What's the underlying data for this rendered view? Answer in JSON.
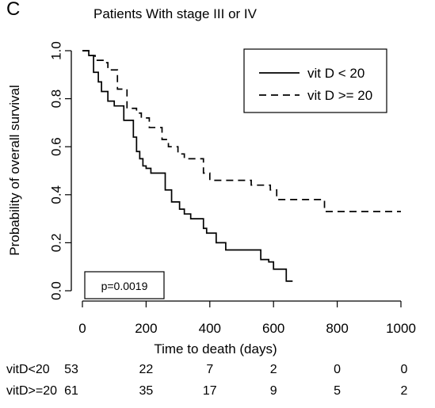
{
  "panel_label": "C",
  "chart_data": {
    "type": "line",
    "title": "Patients With stage III or IV",
    "xlabel": "Time to death (days)",
    "ylabel": "Probability of overall survival",
    "xlim": [
      0,
      1000
    ],
    "ylim": [
      0,
      1
    ],
    "xticks": [
      "0",
      "200",
      "400",
      "600",
      "800",
      "1000"
    ],
    "yticks": [
      "0.0",
      "0.2",
      "0.4",
      "0.6",
      "0.8",
      "1.0"
    ],
    "legend_position": "top-right",
    "annotation": "p=0.0019",
    "series": [
      {
        "name": "vit D < 20",
        "style": "solid",
        "x": [
          0,
          20,
          35,
          50,
          60,
          80,
          100,
          130,
          160,
          170,
          180,
          190,
          200,
          215,
          250,
          260,
          280,
          305,
          320,
          340,
          380,
          390,
          420,
          450,
          560,
          585,
          600,
          640,
          660
        ],
        "y": [
          1.0,
          0.98,
          0.91,
          0.87,
          0.83,
          0.79,
          0.77,
          0.71,
          0.64,
          0.58,
          0.55,
          0.52,
          0.51,
          0.49,
          0.49,
          0.42,
          0.37,
          0.34,
          0.32,
          0.3,
          0.26,
          0.24,
          0.2,
          0.17,
          0.13,
          0.12,
          0.09,
          0.04,
          0.04
        ]
      },
      {
        "name": "vit D >= 20",
        "style": "dashed",
        "x": [
          0,
          20,
          40,
          70,
          80,
          110,
          140,
          170,
          185,
          210,
          250,
          270,
          300,
          320,
          380,
          400,
          450,
          530,
          590,
          610,
          700,
          760,
          1000
        ],
        "y": [
          1.0,
          0.98,
          0.96,
          0.95,
          0.92,
          0.84,
          0.76,
          0.74,
          0.72,
          0.68,
          0.63,
          0.6,
          0.57,
          0.55,
          0.49,
          0.46,
          0.46,
          0.44,
          0.42,
          0.38,
          0.38,
          0.33,
          0.33
        ]
      }
    ]
  },
  "risk_table": {
    "times": [
      0,
      200,
      400,
      600,
      800,
      1000
    ],
    "rows": [
      {
        "label": "vitD<20",
        "counts": [
          "53",
          "22",
          "7",
          "2",
          "0",
          "0"
        ]
      },
      {
        "label": "vitD>=20",
        "counts": [
          "61",
          "35",
          "17",
          "9",
          "5",
          "2"
        ]
      }
    ]
  }
}
